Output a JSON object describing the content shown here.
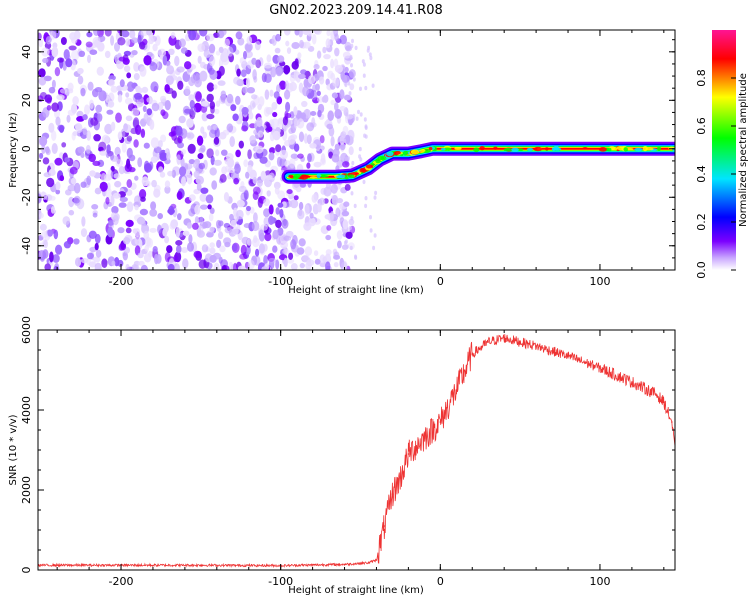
{
  "title": "GN02.2023.209.14.41.R08",
  "chart_data": [
    {
      "type": "heatmap",
      "xlabel": "Height of straight line (km)",
      "ylabel": "Frequency (Hz)",
      "xlim": [
        -252,
        147
      ],
      "ylim": [
        -50,
        49
      ],
      "xticks": [
        -200,
        -100,
        0,
        100
      ],
      "yticks": [
        -40,
        -20,
        0,
        20,
        40
      ],
      "colorbar": {
        "label": "Normalized spectral amplitude",
        "range": [
          0,
          1
        ],
        "ticks": [
          "0.0",
          "0.2",
          "0.4",
          "0.6",
          "0.8"
        ],
        "tick_values": [
          0.0,
          0.2,
          0.4,
          0.6,
          0.8
        ],
        "colors": [
          "#ffffff",
          "#7b00ff",
          "#0000ff",
          "#00e5ff",
          "#00ff00",
          "#ffff00",
          "#ff0000",
          "#ff1493"
        ]
      },
      "noise_region": {
        "x": [
          -252,
          -55
        ],
        "y": [
          -50,
          49
        ]
      },
      "signal_track": [
        {
          "x": -95,
          "y": -11.5
        },
        {
          "x": -80,
          "y": -11.5
        },
        {
          "x": -65,
          "y": -11.5
        },
        {
          "x": -55,
          "y": -11
        },
        {
          "x": -45,
          "y": -8
        },
        {
          "x": -38,
          "y": -4.5
        },
        {
          "x": -30,
          "y": -2
        },
        {
          "x": -20,
          "y": -2
        },
        {
          "x": -12,
          "y": -1
        },
        {
          "x": -5,
          "y": 0
        },
        {
          "x": 50,
          "y": 0
        },
        {
          "x": 100,
          "y": 0
        },
        {
          "x": 147,
          "y": 0
        }
      ],
      "grid": false
    },
    {
      "type": "line",
      "xlabel": "Height of straight line (km)",
      "ylabel": "SNR (10 * v/v)",
      "xlim": [
        -252,
        147
      ],
      "ylim": [
        0,
        6000
      ],
      "xticks": [
        -200,
        -100,
        0,
        100
      ],
      "yticks": [
        0,
        2000,
        4000,
        6000
      ],
      "series": [
        {
          "color": "#ee3333",
          "x": [
            -252,
            -200,
            -150,
            -100,
            -60,
            -45,
            -40,
            -35,
            -30,
            -25,
            -20,
            -10,
            0,
            10,
            20,
            30,
            40,
            50,
            60,
            80,
            100,
            120,
            135,
            140,
            145,
            147
          ],
          "values": [
            120,
            120,
            120,
            110,
            140,
            180,
            250,
            1100,
            1900,
            2300,
            2900,
            3300,
            3700,
            4500,
            5400,
            5700,
            5800,
            5700,
            5600,
            5350,
            5050,
            4700,
            4400,
            4200,
            3700,
            3000
          ]
        }
      ],
      "grid": false
    }
  ]
}
